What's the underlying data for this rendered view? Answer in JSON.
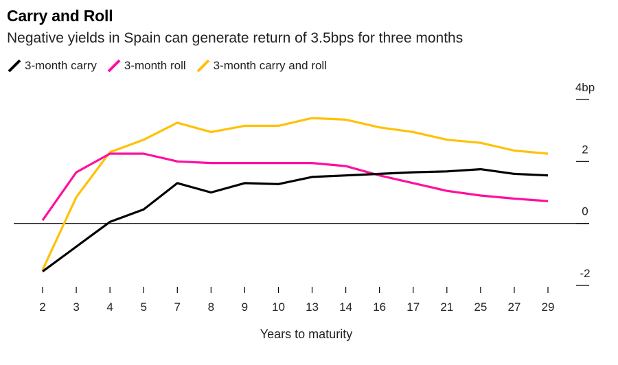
{
  "chart_data": {
    "type": "line",
    "title": "Carry and Roll",
    "subtitle": "Negative yields in Spain can generate return of 3.5bps for three months",
    "xlabel": "Years to maturity",
    "categories": [
      "2",
      "3",
      "4",
      "5",
      "7",
      "8",
      "9",
      "10",
      "13",
      "14",
      "16",
      "17",
      "21",
      "25",
      "27",
      "29"
    ],
    "ylim": [
      -2,
      4
    ],
    "yticks": [
      {
        "value": 4,
        "label": "4bp"
      },
      {
        "value": 2,
        "label": "2"
      },
      {
        "value": 0,
        "label": "0"
      },
      {
        "value": -2,
        "label": "-2"
      }
    ],
    "legend_position": "top-left",
    "series": [
      {
        "name": "3-month carry",
        "color": "#000000",
        "values": [
          -1.55,
          -0.75,
          0.05,
          0.45,
          1.3,
          1.0,
          1.3,
          1.27,
          1.5,
          1.55,
          1.6,
          1.65,
          1.68,
          1.75,
          1.6,
          1.55
        ]
      },
      {
        "name": "3-month roll",
        "color": "#ff0f9f",
        "values": [
          0.1,
          1.65,
          2.25,
          2.25,
          2.0,
          1.95,
          1.95,
          1.95,
          1.95,
          1.85,
          1.55,
          1.3,
          1.05,
          0.9,
          0.8,
          0.72
        ]
      },
      {
        "name": "3-month carry and roll",
        "color": "#ffc107",
        "values": [
          -1.5,
          0.85,
          2.3,
          2.7,
          3.25,
          2.95,
          3.15,
          3.15,
          3.4,
          3.35,
          3.1,
          2.95,
          2.7,
          2.6,
          2.35,
          2.25
        ]
      }
    ]
  }
}
